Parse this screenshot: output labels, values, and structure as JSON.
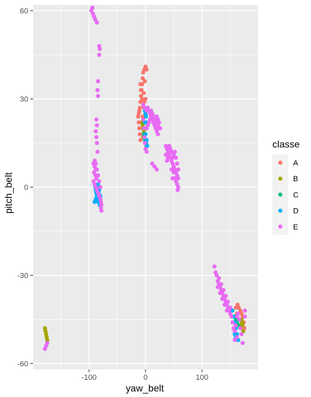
{
  "chart_data": {
    "type": "scatter",
    "xlabel": "yaw_belt",
    "ylabel": "pitch_belt",
    "xlim": [
      -199,
      199
    ],
    "ylim": [
      -62,
      62
    ],
    "x_ticks": [
      -100,
      0,
      100
    ],
    "x_tick_labels": [
      "-100",
      "0",
      "100"
    ],
    "y_ticks": [
      -60,
      -30,
      0,
      30,
      60
    ],
    "y_tick_labels": [
      "-60",
      "-30",
      "0",
      "30",
      "60"
    ],
    "grid": true,
    "background": "#ebebeb",
    "legend": {
      "title": "classe",
      "position": "right",
      "entries": [
        {
          "label": "A",
          "color": "#f8766d"
        },
        {
          "label": "B",
          "color": "#a3a500"
        },
        {
          "label": "C",
          "color": "#00bf7d"
        },
        {
          "label": "D",
          "color": "#00b0f6"
        },
        {
          "label": "E",
          "color": "#e76bf3"
        }
      ]
    },
    "series": [
      {
        "name": "A",
        "color": "#f8766d",
        "points": [
          [
            0,
            41
          ],
          [
            -2,
            40
          ],
          [
            2,
            40
          ],
          [
            -4,
            39
          ],
          [
            -5,
            37
          ],
          [
            -6,
            35
          ],
          [
            -7,
            33
          ],
          [
            -8,
            31
          ],
          [
            -9,
            29
          ],
          [
            -10,
            27
          ],
          [
            -11,
            26
          ],
          [
            -12,
            25
          ],
          [
            -13,
            24
          ],
          [
            -12,
            22
          ],
          [
            -11,
            20
          ],
          [
            -10,
            18
          ],
          [
            -9,
            16
          ],
          [
            -7,
            22
          ],
          [
            -5,
            24
          ],
          [
            -3,
            27
          ],
          [
            -2,
            29
          ],
          [
            0,
            30
          ],
          [
            -9,
            35
          ],
          [
            -8,
            33
          ],
          [
            -6,
            30
          ],
          [
            -4,
            28
          ],
          [
            -3,
            32
          ],
          [
            -1,
            36
          ],
          [
            160,
            -41
          ],
          [
            163,
            -40
          ],
          [
            165,
            -41
          ],
          [
            168,
            -42
          ],
          [
            170,
            -43
          ],
          [
            172,
            -44
          ],
          [
            174,
            -46
          ],
          [
            175,
            -48
          ],
          [
            166,
            -45
          ],
          [
            162,
            -43
          ]
        ]
      },
      {
        "name": "B",
        "color": "#a3a500",
        "points": [
          [
            -178,
            -48
          ],
          [
            -177,
            -49
          ],
          [
            -176,
            -50
          ],
          [
            -175,
            -51
          ],
          [
            -174,
            -52
          ],
          [
            -5,
            21
          ],
          [
            -4,
            20
          ],
          [
            -3,
            19
          ],
          [
            -6,
            22
          ],
          [
            -2,
            18
          ],
          [
            -4,
            17
          ],
          [
            170,
            -45
          ],
          [
            172,
            -47
          ],
          [
            173,
            -49
          ],
          [
            168,
            -47
          ],
          [
            171,
            -46
          ]
        ]
      },
      {
        "name": "C",
        "color": "#00bf7d",
        "points": [
          [
            -2,
            17
          ],
          [
            -1,
            16
          ],
          [
            0,
            15
          ],
          [
            1,
            16
          ],
          [
            -3,
            18
          ],
          [
            2,
            14
          ],
          [
            -85,
            -1
          ],
          [
            -84,
            -2
          ],
          [
            -83,
            -3
          ],
          [
            158,
            -44
          ],
          [
            160,
            -45
          ],
          [
            162,
            -46
          ],
          [
            164,
            -47
          ]
        ]
      },
      {
        "name": "D",
        "color": "#00b0f6",
        "points": [
          [
            -1,
            26
          ],
          [
            0,
            25
          ],
          [
            1,
            24
          ],
          [
            2,
            22
          ],
          [
            1,
            20
          ],
          [
            0,
            18
          ],
          [
            2,
            16
          ],
          [
            3,
            14
          ],
          [
            1,
            15
          ],
          [
            -1,
            22
          ],
          [
            -89,
            0
          ],
          [
            -88,
            -1
          ],
          [
            -87,
            -2
          ],
          [
            -86,
            -3
          ],
          [
            -85,
            -4
          ],
          [
            -84,
            -5
          ],
          [
            -83,
            -2
          ],
          [
            -82,
            -1
          ],
          [
            -86,
            0
          ],
          [
            -84,
            1
          ],
          [
            -83,
            -4
          ],
          [
            -82,
            -5
          ],
          [
            -81,
            -6
          ],
          [
            -80,
            -3
          ],
          [
            -88,
            -4
          ],
          [
            -90,
            -5
          ],
          [
            154,
            -42
          ],
          [
            156,
            -44
          ],
          [
            158,
            -46
          ],
          [
            160,
            -48
          ],
          [
            162,
            -50
          ],
          [
            164,
            -52
          ],
          [
            158,
            -50
          ],
          [
            160,
            -51
          ]
        ]
      },
      {
        "name": "E",
        "color": "#e76bf3",
        "points": [
          [
            -96,
            60
          ],
          [
            -94,
            61
          ],
          [
            -93,
            59
          ],
          [
            -91,
            58
          ],
          [
            -89,
            57
          ],
          [
            -86,
            56
          ],
          [
            -82,
            48
          ],
          [
            -81,
            47
          ],
          [
            -82,
            45
          ],
          [
            -84,
            36
          ],
          [
            -85,
            33
          ],
          [
            -84,
            31
          ],
          [
            -87,
            23
          ],
          [
            -86,
            21
          ],
          [
            -88,
            19
          ],
          [
            -87,
            17
          ],
          [
            -86,
            15
          ],
          [
            -85,
            12
          ],
          [
            -92,
            8
          ],
          [
            -90,
            7
          ],
          [
            -88,
            6
          ],
          [
            -91,
            5
          ],
          [
            -89,
            4
          ],
          [
            -87,
            3
          ],
          [
            -92,
            2
          ],
          [
            -90,
            1
          ],
          [
            -88,
            0
          ],
          [
            -86,
            -1
          ],
          [
            -84,
            -2
          ],
          [
            -82,
            -3
          ],
          [
            -80,
            -4
          ],
          [
            -79,
            -5
          ],
          [
            -78,
            -6
          ],
          [
            -79,
            -7
          ],
          [
            -78,
            -8
          ],
          [
            -90,
            9
          ],
          [
            -88,
            8
          ],
          [
            -86,
            6
          ],
          [
            -84,
            4
          ],
          [
            -82,
            2
          ],
          [
            -80,
            0
          ],
          [
            -4,
            28
          ],
          [
            -2,
            27
          ],
          [
            0,
            27
          ],
          [
            2,
            26
          ],
          [
            4,
            27
          ],
          [
            6,
            26
          ],
          [
            8,
            25
          ],
          [
            10,
            26
          ],
          [
            12,
            25
          ],
          [
            14,
            24
          ],
          [
            16,
            24
          ],
          [
            18,
            23
          ],
          [
            20,
            22
          ],
          [
            22,
            21
          ],
          [
            24,
            20
          ],
          [
            26,
            20
          ],
          [
            12,
            23
          ],
          [
            14,
            22
          ],
          [
            16,
            21
          ],
          [
            18,
            20
          ],
          [
            20,
            19
          ],
          [
            22,
            18
          ],
          [
            20,
            24
          ],
          [
            22,
            23
          ],
          [
            24,
            22
          ],
          [
            10,
            24
          ],
          [
            8,
            23
          ],
          [
            6,
            22
          ],
          [
            4,
            21
          ],
          [
            2,
            20
          ],
          [
            -4,
            23
          ],
          [
            -3,
            20
          ],
          [
            -2,
            17
          ],
          [
            -1,
            15
          ],
          [
            0,
            13
          ],
          [
            2,
            12
          ],
          [
            12,
            8
          ],
          [
            16,
            7
          ],
          [
            20,
            6
          ],
          [
            36,
            14
          ],
          [
            38,
            13
          ],
          [
            40,
            12
          ],
          [
            42,
            11
          ],
          [
            44,
            10
          ],
          [
            46,
            9
          ],
          [
            48,
            8
          ],
          [
            50,
            7
          ],
          [
            52,
            6
          ],
          [
            54,
            5
          ],
          [
            56,
            4
          ],
          [
            58,
            3
          ],
          [
            58,
            6
          ],
          [
            56,
            8
          ],
          [
            54,
            10
          ],
          [
            52,
            12
          ],
          [
            50,
            11
          ],
          [
            48,
            10
          ],
          [
            46,
            12
          ],
          [
            44,
            13
          ],
          [
            42,
            14
          ],
          [
            40,
            10
          ],
          [
            38,
            9
          ],
          [
            36,
            11
          ],
          [
            50,
            5
          ],
          [
            52,
            3
          ],
          [
            54,
            2
          ],
          [
            56,
            1
          ],
          [
            58,
            0
          ],
          [
            57,
            -1
          ],
          [
            48,
            3
          ],
          [
            46,
            6
          ],
          [
            122,
            -27
          ],
          [
            124,
            -29
          ],
          [
            126,
            -30
          ],
          [
            128,
            -32
          ],
          [
            130,
            -33
          ],
          [
            132,
            -34
          ],
          [
            134,
            -35
          ],
          [
            136,
            -36
          ],
          [
            138,
            -37
          ],
          [
            140,
            -38
          ],
          [
            142,
            -39
          ],
          [
            144,
            -40
          ],
          [
            146,
            -41
          ],
          [
            148,
            -42
          ],
          [
            150,
            -43
          ],
          [
            128,
            -34
          ],
          [
            132,
            -36
          ],
          [
            136,
            -38
          ],
          [
            140,
            -40
          ],
          [
            144,
            -42
          ],
          [
            130,
            -31
          ],
          [
            134,
            -33
          ],
          [
            138,
            -35
          ],
          [
            142,
            -37
          ],
          [
            146,
            -39
          ],
          [
            150,
            -41
          ],
          [
            152,
            -44
          ],
          [
            154,
            -46
          ],
          [
            156,
            -48
          ],
          [
            158,
            -49
          ],
          [
            160,
            -47
          ],
          [
            162,
            -44
          ],
          [
            164,
            -43
          ],
          [
            166,
            -45
          ],
          [
            168,
            -48
          ],
          [
            170,
            -50
          ],
          [
            172,
            -53
          ],
          [
            162,
            -51
          ],
          [
            158,
            -52
          ],
          [
            176,
            -42
          ],
          [
            176,
            -44
          ],
          [
            -174,
            -53
          ],
          [
            -176,
            -54
          ],
          [
            -178,
            -55
          ]
        ]
      }
    ]
  }
}
